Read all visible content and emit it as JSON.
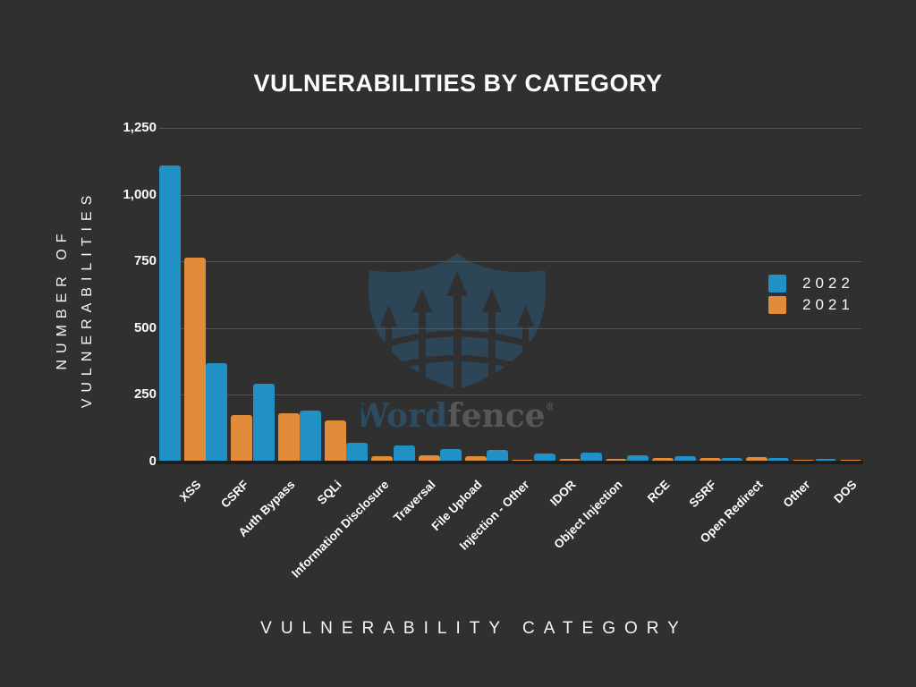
{
  "title": "VULNERABILITIES BY CATEGORY",
  "y_axis": {
    "title_line1": "NUMBER OF",
    "title_line2": "VULNERABILITIES",
    "tick_labels": [
      "1,250",
      "1,000",
      "750",
      "500",
      "250",
      "0"
    ]
  },
  "x_axis": {
    "title": "VULNERABILITY CATEGORY"
  },
  "legend": {
    "items": [
      {
        "label": "2022",
        "color": "#2190C5"
      },
      {
        "label": "2021",
        "color": "#E28B3A"
      }
    ]
  },
  "watermark": {
    "brand_word": "Word",
    "brand_fence": "fence",
    "registered_mark": "®",
    "shield_color": "#2C4557",
    "word_color": "#2D4C61",
    "fence_color": "#575757"
  },
  "colors": {
    "background": "#303031",
    "bar_2022": "#2190C5",
    "bar_2021": "#E28B3A",
    "gridline": "#5E5E5E",
    "text": "#FCFCFC",
    "axis_baseline": "#1D1D1D"
  },
  "chart_data": {
    "type": "bar",
    "title": "VULNERABILITIES BY CATEGORY",
    "xlabel": "VULNERABILITY CATEGORY",
    "ylabel": "NUMBER OF VULNERABILITIES",
    "ylim": [
      0,
      1250
    ],
    "ytick_interval": 250,
    "grid": true,
    "legend_position": "right",
    "categories": [
      "XSS",
      "CSRF",
      "Auth Bypass",
      "SQLi",
      "Information Disclosure",
      "Traversal",
      "File Upload",
      "Injection - Other",
      "IDOR",
      "Object Injection",
      "RCE",
      "SSRF",
      "Open Redirect",
      "Other",
      "DOS"
    ],
    "series": [
      {
        "name": "2022",
        "color": "#2190C5",
        "values": [
          1110,
          370,
          290,
          190,
          70,
          62,
          48,
          42,
          30,
          33,
          22,
          21,
          14,
          12,
          11
        ]
      },
      {
        "name": "2021",
        "color": "#E28B3A",
        "values": [
          765,
          175,
          180,
          155,
          20,
          22,
          20,
          6,
          9,
          10,
          12,
          12,
          16,
          7,
          4
        ]
      }
    ]
  }
}
